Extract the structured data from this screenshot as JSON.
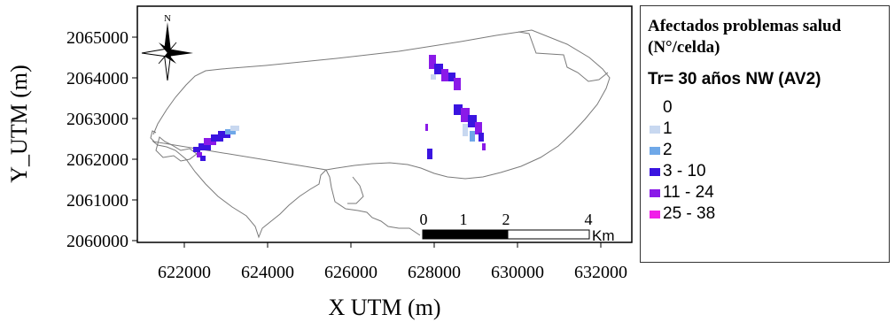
{
  "map": {
    "y_axis_label": "Y_UTM (m)",
    "x_axis_label": "X  UTM (m)",
    "y_ticks": [
      "2065000",
      "2064000",
      "2063000",
      "2062000",
      "2061000",
      "2060000"
    ],
    "x_ticks": [
      "622000",
      "624000",
      "626000",
      "628000",
      "630000",
      "632000"
    ],
    "north_label": "N",
    "scalebar": {
      "labels": [
        "0",
        "1",
        "2",
        "4"
      ],
      "unit": "Km"
    }
  },
  "legend": {
    "title_line1": "Afectados problemas salud",
    "title_line2": "(N°/celda)",
    "subtitle": "Tr= 30 años NW (AV2)",
    "items": [
      {
        "label": "0",
        "color": "#ffffff"
      },
      {
        "label": "1",
        "color": "#c8d8f0"
      },
      {
        "label": "2",
        "color": "#6fa8e8"
      },
      {
        "label": "3 - 10",
        "color": "#3a14e0"
      },
      {
        "label": "11 - 24",
        "color": "#8a1ae8"
      },
      {
        "label": "25 - 38",
        "color": "#f01ee8"
      }
    ]
  },
  "colors": {
    "outline": "#7a7a7a",
    "frame": "#000000"
  }
}
